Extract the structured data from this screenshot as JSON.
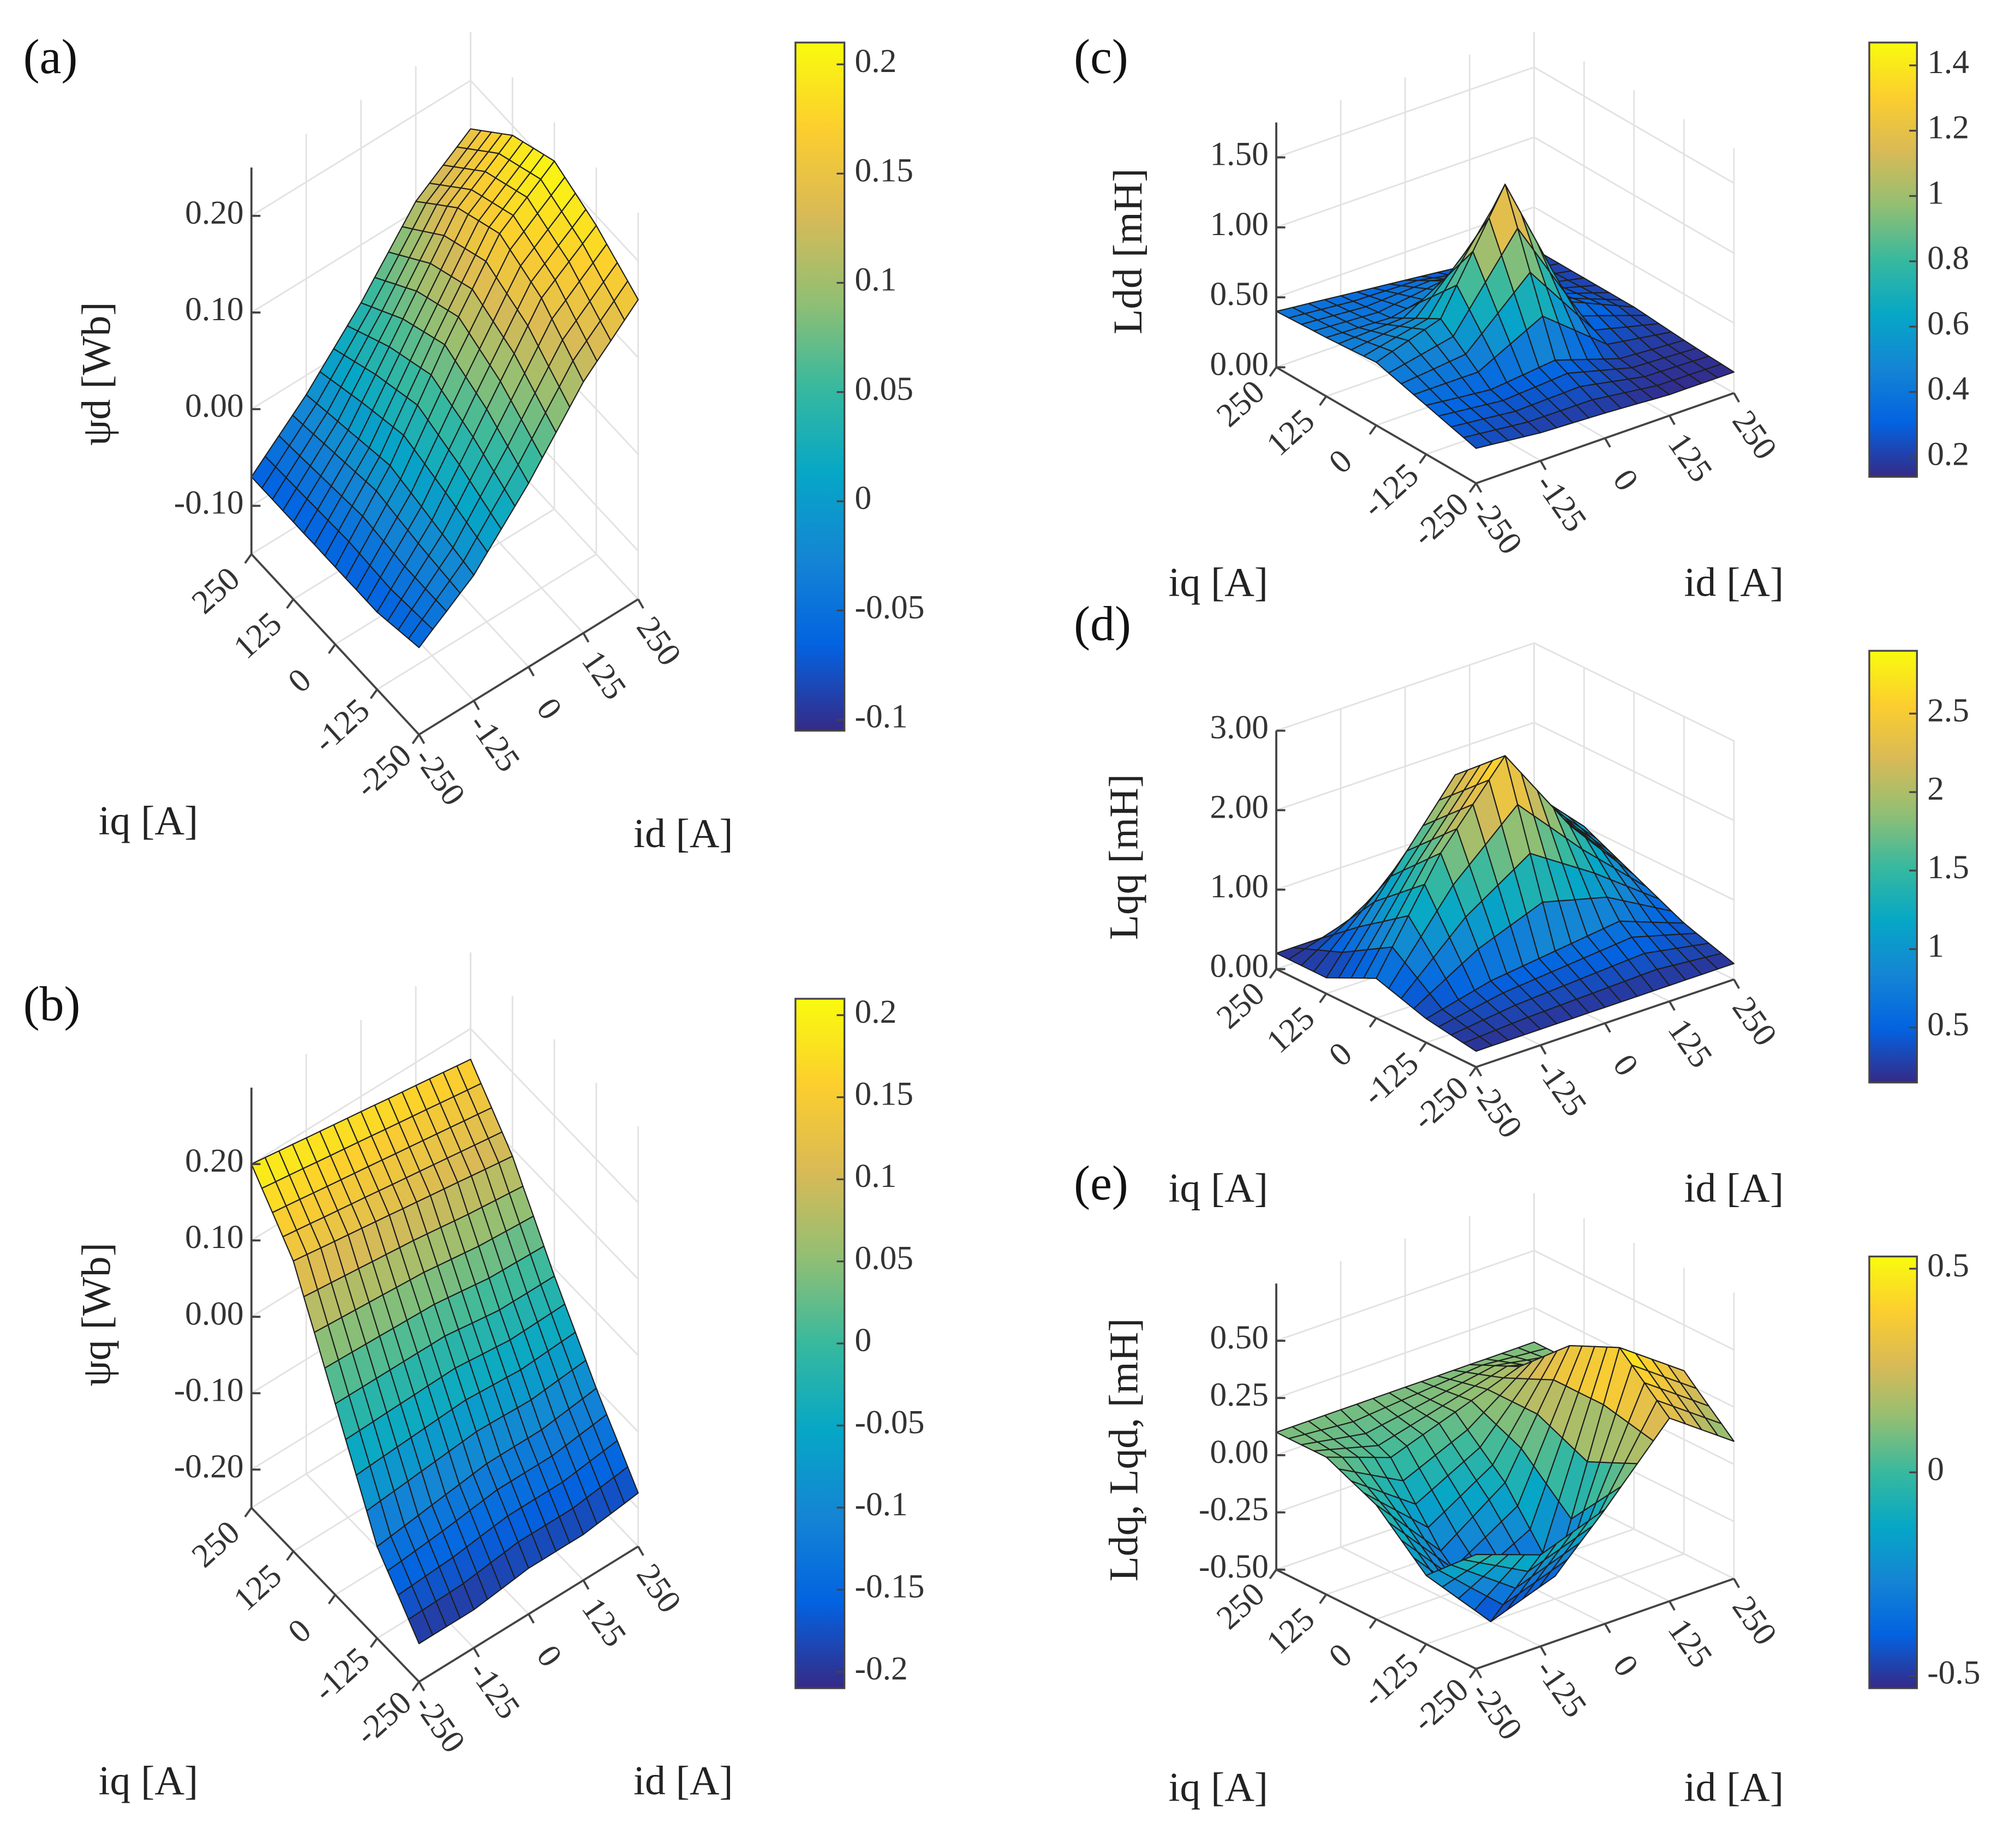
{
  "colormap": [
    "#352a87",
    "#0363e1",
    "#1485d4",
    "#06a7c6",
    "#38b99e",
    "#92bf73",
    "#d9ba56",
    "#fcce2e",
    "#f9fb0e"
  ],
  "chart_data": [
    {
      "type": "surface",
      "label": "(a)",
      "xlabel": "id [A]",
      "ylabel": "iq [A]",
      "zlabel": "ψd [Wb]",
      "x": [
        -250,
        -125,
        0,
        125,
        250
      ],
      "y": [
        -250,
        -125,
        0,
        125,
        250
      ],
      "z": [
        [
          -0.06,
          -0.02,
          0.04,
          0.11,
          0.16
        ],
        [
          -0.07,
          -0.01,
          0.07,
          0.15,
          0.19
        ],
        [
          -0.07,
          0.0,
          0.09,
          0.17,
          0.21
        ],
        [
          -0.07,
          -0.01,
          0.07,
          0.15,
          0.19
        ],
        [
          -0.07,
          -0.02,
          0.04,
          0.11,
          0.15
        ]
      ],
      "xlim": [
        -250,
        250
      ],
      "ylim": [
        -250,
        250
      ],
      "zlim": [
        -0.15,
        0.25
      ],
      "xticks": [
        -250,
        -125,
        0,
        125,
        250
      ],
      "yticks": [
        -250,
        -125,
        0,
        125,
        250
      ],
      "zticks": [
        {
          "value": -0.1,
          "label": "-0.10"
        },
        {
          "value": 0,
          "label": "0.00"
        },
        {
          "value": 0.1,
          "label": "0.10"
        },
        {
          "value": 0.2,
          "label": "0.20"
        }
      ],
      "clim": [
        -0.105,
        0.21
      ],
      "cticks": [
        -0.1,
        -0.05,
        0,
        0.05,
        0.1,
        0.15,
        0.2
      ]
    },
    {
      "type": "surface",
      "label": "(b)",
      "xlabel": "id [A]",
      "ylabel": "iq [A]",
      "zlabel": "ψq [Wb]",
      "x": [
        -250,
        -125,
        0,
        125,
        250
      ],
      "y": [
        -250,
        -125,
        0,
        125,
        250
      ],
      "z": [
        [
          -0.2,
          -0.2,
          -0.19,
          -0.19,
          -0.18
        ],
        [
          -0.13,
          -0.12,
          -0.11,
          -0.11,
          -0.1
        ],
        [
          0.0,
          0.0,
          0.0,
          -0.01,
          -0.01
        ],
        [
          0.13,
          0.12,
          0.11,
          0.1,
          0.09
        ],
        [
          0.2,
          0.19,
          0.18,
          0.17,
          0.16
        ]
      ],
      "xlim": [
        -250,
        250
      ],
      "ylim": [
        -250,
        250
      ],
      "zlim": [
        -0.25,
        0.3
      ],
      "xticks": [
        -250,
        -125,
        0,
        125,
        250
      ],
      "yticks": [
        -250,
        -125,
        0,
        125,
        250
      ],
      "zticks": [
        {
          "value": -0.2,
          "label": "-0.20"
        },
        {
          "value": -0.1,
          "label": "-0.10"
        },
        {
          "value": 0,
          "label": "0.00"
        },
        {
          "value": 0.1,
          "label": "0.10"
        },
        {
          "value": 0.2,
          "label": "0.20"
        }
      ],
      "clim": [
        -0.21,
        0.21
      ],
      "cticks": [
        -0.2,
        -0.15,
        -0.1,
        -0.05,
        0,
        0.05,
        0.1,
        0.15,
        0.2
      ]
    },
    {
      "type": "surface",
      "label": "(c)",
      "xlabel": "id [A]",
      "ylabel": "iq [A]",
      "zlabel": "Ldd [mH]",
      "x": [
        -250,
        -125,
        0,
        125,
        250
      ],
      "y": [
        -250,
        -125,
        0,
        125,
        250
      ],
      "z": [
        [
          0.25,
          0.2,
          0.18,
          0.15,
          0.15
        ],
        [
          0.35,
          0.3,
          0.35,
          0.2,
          0.17
        ],
        [
          0.45,
          0.6,
          1.4,
          0.4,
          0.2
        ],
        [
          0.42,
          0.4,
          0.5,
          0.3,
          0.2
        ],
        [
          0.4,
          0.35,
          0.3,
          0.25,
          0.2
        ]
      ],
      "xlim": [
        -250,
        250
      ],
      "ylim": [
        -250,
        250
      ],
      "zlim": [
        0,
        1.75
      ],
      "xticks": [
        -250,
        -125,
        0,
        125,
        250
      ],
      "yticks": [
        -250,
        -125,
        0,
        125,
        250
      ],
      "zticks": [
        {
          "value": 0,
          "label": "0.00"
        },
        {
          "value": 0.5,
          "label": "0.50"
        },
        {
          "value": 1,
          "label": "1.00"
        },
        {
          "value": 1.5,
          "label": "1.50"
        }
      ],
      "clim": [
        0.14,
        1.47
      ],
      "cticks": [
        0.2,
        0.4,
        0.6,
        0.8,
        1,
        1.2,
        1.4
      ]
    },
    {
      "type": "surface",
      "label": "(d)",
      "xlabel": "id [A]",
      "ylabel": "iq [A]",
      "zlabel": "Lqq [mH]",
      "x": [
        -250,
        -125,
        0,
        125,
        250
      ],
      "y": [
        -250,
        -125,
        0,
        125,
        250
      ],
      "z": [
        [
          0.2,
          0.2,
          0.2,
          0.2,
          0.2
        ],
        [
          0.3,
          0.5,
          0.6,
          0.7,
          0.4
        ],
        [
          0.5,
          1.8,
          2.75,
          1.6,
          0.7
        ],
        [
          0.2,
          1.2,
          2.2,
          1.8,
          1.0
        ],
        [
          0.2,
          0.2,
          0.3,
          0.5,
          0.3
        ]
      ],
      "xlim": [
        -250,
        250
      ],
      "ylim": [
        -250,
        250
      ],
      "zlim": [
        0,
        3
      ],
      "xticks": [
        -250,
        -125,
        0,
        125,
        250
      ],
      "yticks": [
        -250,
        -125,
        0,
        125,
        250
      ],
      "zticks": [
        {
          "value": 0,
          "label": "0.00"
        },
        {
          "value": 1,
          "label": "1.00"
        },
        {
          "value": 2,
          "label": "2.00"
        },
        {
          "value": 3,
          "label": "3.00"
        }
      ],
      "clim": [
        0.15,
        2.9
      ],
      "cticks": [
        0.5,
        1,
        1.5,
        2,
        2.5
      ]
    },
    {
      "type": "surface",
      "label": "(e)",
      "xlabel": "id [A]",
      "ylabel": "iq [A]",
      "zlabel": "Ldq,  Lqd,  [mH]",
      "x": [
        -250,
        -125,
        0,
        125,
        250
      ],
      "y": [
        -250,
        -125,
        0,
        125,
        250
      ],
      "z": [
        [
          0.0,
          -0.1,
          0.0,
          0.3,
          0.1
        ],
        [
          -0.2,
          -0.5,
          -0.4,
          0.5,
          0.3
        ],
        [
          0.0,
          -0.3,
          -0.1,
          0.4,
          0.2
        ],
        [
          0.1,
          0.0,
          0.1,
          0.2,
          0.1
        ],
        [
          0.1,
          0.1,
          0.1,
          0.1,
          0.1
        ]
      ],
      "xlim": [
        -250,
        250
      ],
      "ylim": [
        -250,
        250
      ],
      "zlim": [
        -0.5,
        0.75
      ],
      "xticks": [
        -250,
        -125,
        0,
        125,
        250
      ],
      "yticks": [
        -250,
        -125,
        0,
        125,
        250
      ],
      "zticks": [
        {
          "value": -0.5,
          "label": "-0.50"
        },
        {
          "value": -0.25,
          "label": "-0.25"
        },
        {
          "value": 0,
          "label": "0.00"
        },
        {
          "value": 0.25,
          "label": "0.25"
        },
        {
          "value": 0.5,
          "label": "0.50"
        }
      ],
      "clim": [
        -0.53,
        0.53
      ],
      "cticks": [
        -0.5,
        0,
        0.5
      ]
    }
  ]
}
